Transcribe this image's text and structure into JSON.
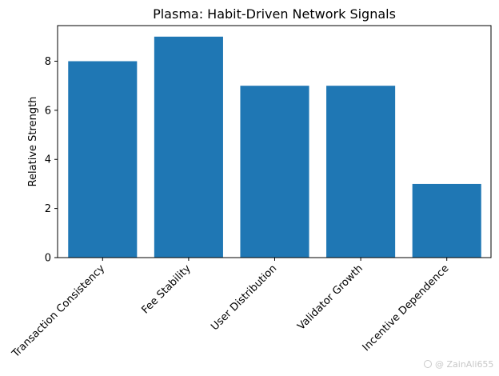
{
  "chart_data": {
    "type": "bar",
    "title": "Plasma: Habit-Driven Network Signals",
    "xlabel": "",
    "ylabel": "Relative Strength",
    "categories": [
      "Transaction Consistency",
      "Fee Stability",
      "User Distribution",
      "Validator Growth",
      "Incentive Dependence"
    ],
    "values": [
      8,
      9,
      7,
      7,
      3
    ],
    "ylim": [
      0,
      9.45
    ],
    "yticks": [
      "0",
      "2",
      "4",
      "6",
      "8"
    ],
    "bar_color": "#1f77b4",
    "grid": false,
    "legend": "none"
  },
  "watermark": {
    "text": "@ ZainAli655"
  }
}
